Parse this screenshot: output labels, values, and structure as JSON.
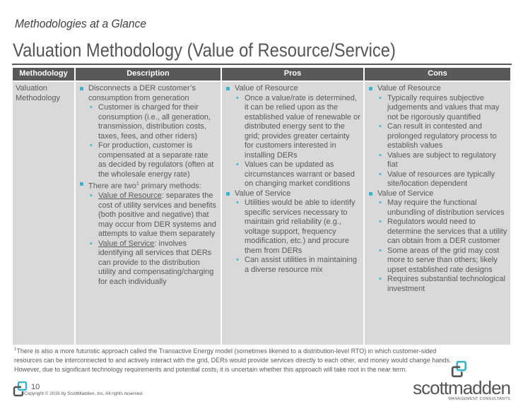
{
  "subtitle": "Methodologies at a Glance",
  "title": "Valuation Methodology (Value of Resource/Service)",
  "table": {
    "headers": [
      "Methodology",
      "Description",
      "Pros",
      "Cons"
    ],
    "methodology": "Valuation Methodology",
    "description": {
      "b1": "Disconnects a DER customer’s consumption from generation",
      "b1_subs": [
        "Customer is charged for their consumption (i.e., all generation, transmission, distribution costs, taxes, fees, and other riders)",
        "For production, customer is compensated at a separate rate as decided by regulators (often at the wholesale energy rate)"
      ],
      "b2_pre": "There are two",
      "b2_sup": "1",
      "b2_post": " primary methods:",
      "m1_label": "Value of Resource",
      "m1_text": ": separates the cost of utility services and benefits (both positive and negative) that may occur from DER systems and attempts to value them separately",
      "m2_label": "Value of Service",
      "m2_text": ": involves identifying all services that DERs can provide to the distribution utility and compensating/charging for each individually"
    },
    "pros": [
      {
        "label": "Value of Resource",
        "subs": [
          "Once a value/rate is determined, it can be relied upon as the established value of renewable or distributed energy sent to the grid; provides greater certainty for customers interested in installing DERs",
          "Values can be updated as circumstances warrant or based on changing market conditions"
        ]
      },
      {
        "label": "Value of Service",
        "subs": [
          "Utilities would be able to identify specific services necessary to maintain grid reliability (e.g., voltage support, frequency modification, etc.) and procure them from DERs",
          "Can assist utilities in maintaining a diverse resource mix"
        ]
      }
    ],
    "cons": [
      {
        "label": "Value of Resource",
        "subs": [
          "Typically requires subjective judgements and values that may not be rigorously quantified",
          "Can result in contested and prolonged regulatory process to establish values",
          "Values are subject to regulatory fiat",
          "Value of resources are typically site/location dependent"
        ]
      },
      {
        "label": "Value of Service",
        "subs": [
          "May require the functional unbundling of distribution services",
          "Regulators would need to determine the services that a utility can obtain from a DER customer",
          "Some areas of the grid may cost more to serve than others; likely upset established rate designs",
          "Requires substantial technological investment"
        ]
      }
    ]
  },
  "footnote": {
    "sup": "1",
    "text": "There is also a more futuristic approach called the Transactive Energy model (sometimes likened to a distribution-level RTO) in which customer-sided resources can be interconnected to and actively interact with the grid, DERs would provide services directly to each other, and money would change hands. However, due to significant technology requirements and potential costs, it is uncertain whether this approach will take root in the near term."
  },
  "page_number": "10",
  "copyright": "Copyright © 2016 by ScottMadden, Inc. All rights reserved.",
  "logo": {
    "name": "scottmadden",
    "tagline": "MANAGEMENT CONSULTANTS"
  },
  "colors": {
    "accent": "#3bb4c9",
    "header": "#595959",
    "cell": "#d9d9d9"
  }
}
